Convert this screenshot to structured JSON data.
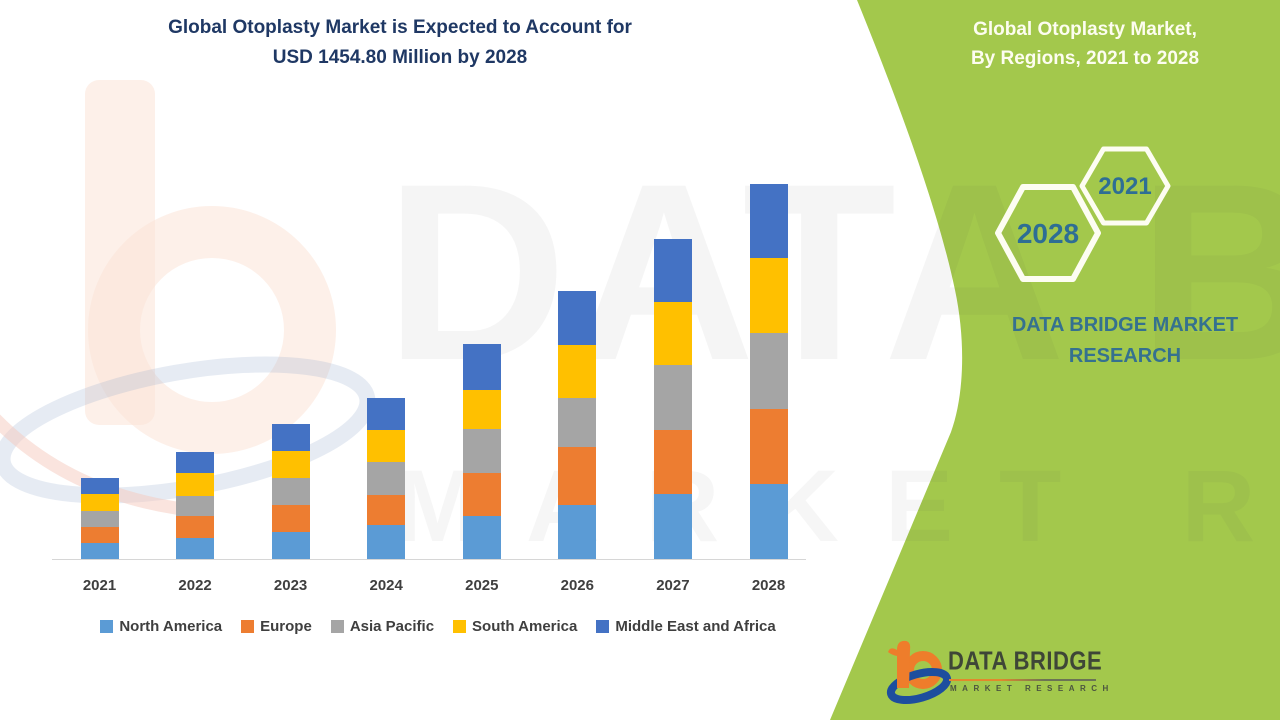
{
  "header": {
    "title_line1": "Global Otoplasty Market is Expected to Account for",
    "title_line2": "USD 1454.80 Million by 2028",
    "title_color": "#1f3864"
  },
  "side_panel": {
    "bg_color": "#a3c84c",
    "title_line1": "Global Otoplasty Market,",
    "title_line2": "By Regions, 2021 to 2028",
    "title_color": "#fdfdf0",
    "hex_small_label": "2021",
    "hex_large_label": "2028",
    "hex_text_color": "#2e6e94",
    "hex_stroke_color": "#fdfdf2",
    "brand_line1": "DATA BRIDGE MARKET",
    "brand_line2": "RESEARCH",
    "brand_color": "#35718f"
  },
  "logo": {
    "name": "DATA BRIDGE",
    "tagline": "MARKET RESEARCH",
    "name_color": "#3e4637",
    "tagline_color": "#4c5540",
    "orange": "#ee7d2b",
    "blue": "#1d4e9e"
  },
  "watermark": {
    "big_text": "DATA BRIDGE",
    "sub_text": "MARKET RESEARCH"
  },
  "chart_data": {
    "type": "bar",
    "stacked": true,
    "title": "Global Otoplasty Market, By Regions, 2021 to 2028",
    "unit": "USD Million",
    "xlabel": "",
    "ylabel": "",
    "y_axis_shown": false,
    "grid": false,
    "legend_position": "bottom",
    "categories": [
      "2021",
      "2022",
      "2023",
      "2024",
      "2025",
      "2026",
      "2027",
      "2028"
    ],
    "series": [
      {
        "name": "North America",
        "color": "#5b9bd5",
        "values": [
          62,
          81,
          105,
          132,
          166,
          210,
          251,
          291
        ]
      },
      {
        "name": "Europe",
        "color": "#ed7d31",
        "values": [
          61,
          85,
          106,
          117,
          167,
          224,
          248,
          291
        ]
      },
      {
        "name": "Asia Pacific",
        "color": "#a5a5a5",
        "values": [
          65,
          78,
          104,
          128,
          171,
          190,
          255,
          294
        ]
      },
      {
        "name": "South America",
        "color": "#ffc000",
        "values": [
          64,
          89,
          105,
          124,
          151,
          207,
          243,
          291
        ]
      },
      {
        "name": "Middle East and Africa",
        "color": "#4472c4",
        "values": [
          62,
          82,
          104,
          124,
          179,
          209,
          244,
          288
        ]
      }
    ],
    "totals": [
      314,
      415,
      524,
      625,
      834,
      1040,
      1241,
      1455
    ],
    "final_year_value_label": "USD 1454.80 Million"
  }
}
